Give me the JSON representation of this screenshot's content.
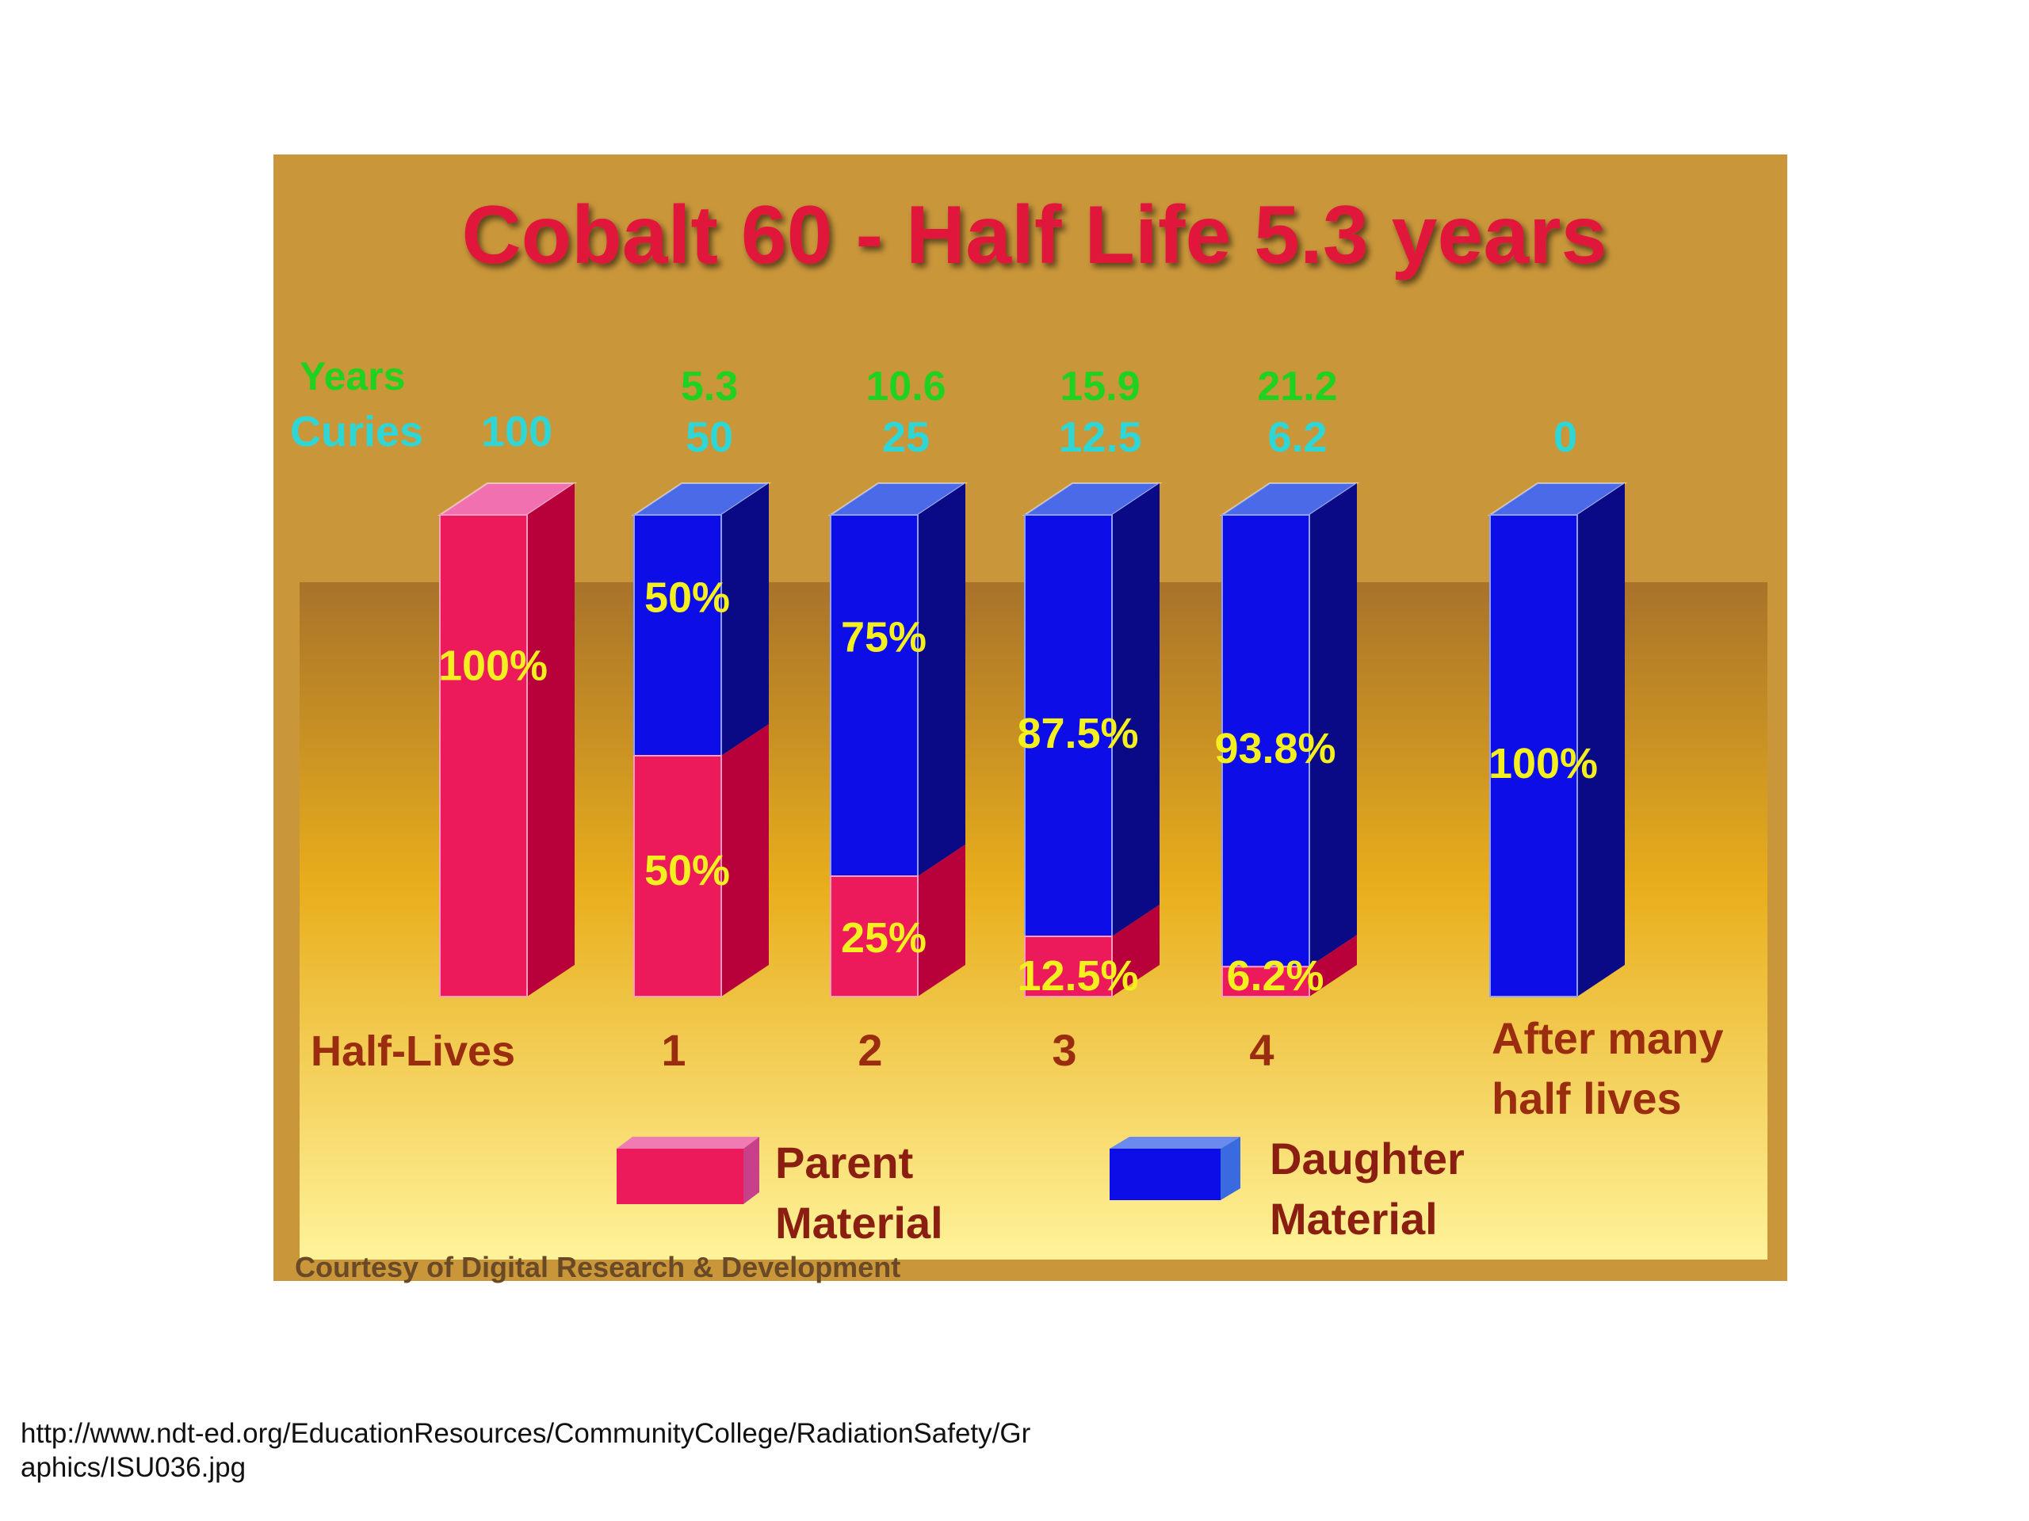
{
  "colors": {
    "background": "#c9963a",
    "title": "#e0183a",
    "years": "#1fd21f",
    "curies": "#2fd6d6",
    "parent": "#ec1a5a",
    "parent_side": "#b8003a",
    "daughter": "#0d0de8",
    "daughter_side": "#0a0a86",
    "percent_label": "#f4f020",
    "axis_label": "#9a2d10",
    "legend_text": "#8a1e10",
    "credit": "#6a4a26"
  },
  "chart_data": {
    "type": "bar",
    "stacked": true,
    "title": "Cobalt 60 - Half Life 5.3 years",
    "row_labels": {
      "years": "Years",
      "curies": "Curies"
    },
    "xlabel": "Half-Lives",
    "categories": [
      "",
      "1",
      "2",
      "3",
      "4",
      "After many half lives"
    ],
    "years": [
      "",
      "5.3",
      "10.6",
      "15.9",
      "21.2",
      ""
    ],
    "curies": [
      "100",
      "50",
      "25",
      "12.5",
      "6.2",
      "0"
    ],
    "series": [
      {
        "name": "Parent Material",
        "values": [
          100,
          50,
          25,
          12.5,
          6.2,
          0
        ],
        "labels": [
          "100%",
          "50%",
          "25%",
          "12.5%",
          "6.2%",
          ""
        ]
      },
      {
        "name": "Daughter Material",
        "values": [
          0,
          50,
          75,
          87.5,
          93.8,
          100
        ],
        "labels": [
          "",
          "50%",
          "75%",
          "87.5%",
          "93.8%",
          "100%"
        ]
      }
    ],
    "ylim": [
      0,
      100
    ],
    "legend": [
      "Parent Material",
      "Daughter Material"
    ],
    "legend_position": "bottom",
    "credit": "Courtesy of Digital Research & Development"
  },
  "footer": {
    "source_url": "http://www.ndt-ed.org/EducationResources/CommunityCollege/RadiationSafety/Graphics/ISU036.jpg"
  }
}
